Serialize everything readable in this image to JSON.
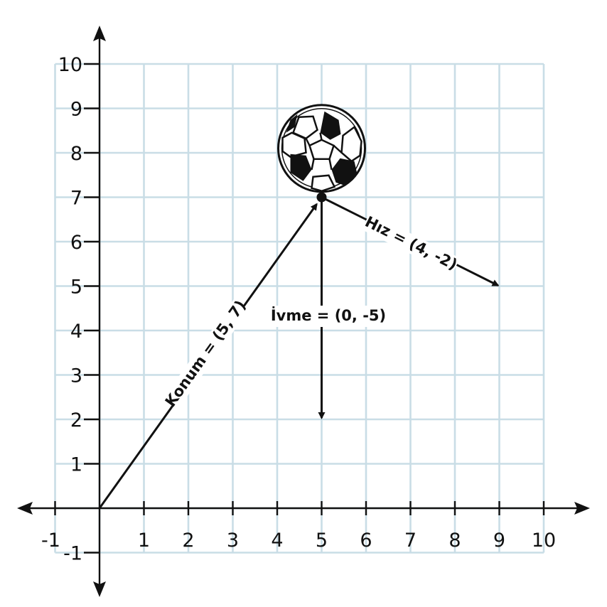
{
  "axes": {
    "x_ticks": [
      "-1",
      "1",
      "2",
      "3",
      "4",
      "5",
      "6",
      "7",
      "8",
      "9",
      "10"
    ],
    "y_ticks": [
      "-1",
      "1",
      "2",
      "3",
      "4",
      "5",
      "6",
      "7",
      "8",
      "9",
      "10"
    ]
  },
  "vectors": {
    "position": {
      "label": "Konum = (5, 7)",
      "from": [
        0,
        0
      ],
      "to": [
        5,
        7
      ]
    },
    "velocity": {
      "label": "Hız = (4, -2)",
      "from": [
        5,
        7
      ],
      "to": [
        9,
        5
      ]
    },
    "acceleration": {
      "label": "İvme = (0, -5)",
      "from": [
        5,
        7
      ],
      "to": [
        5,
        2
      ]
    }
  },
  "ball": {
    "icon": "soccer-ball-icon",
    "center": [
      5,
      8.1
    ]
  },
  "point": {
    "at": [
      5,
      7
    ]
  }
}
